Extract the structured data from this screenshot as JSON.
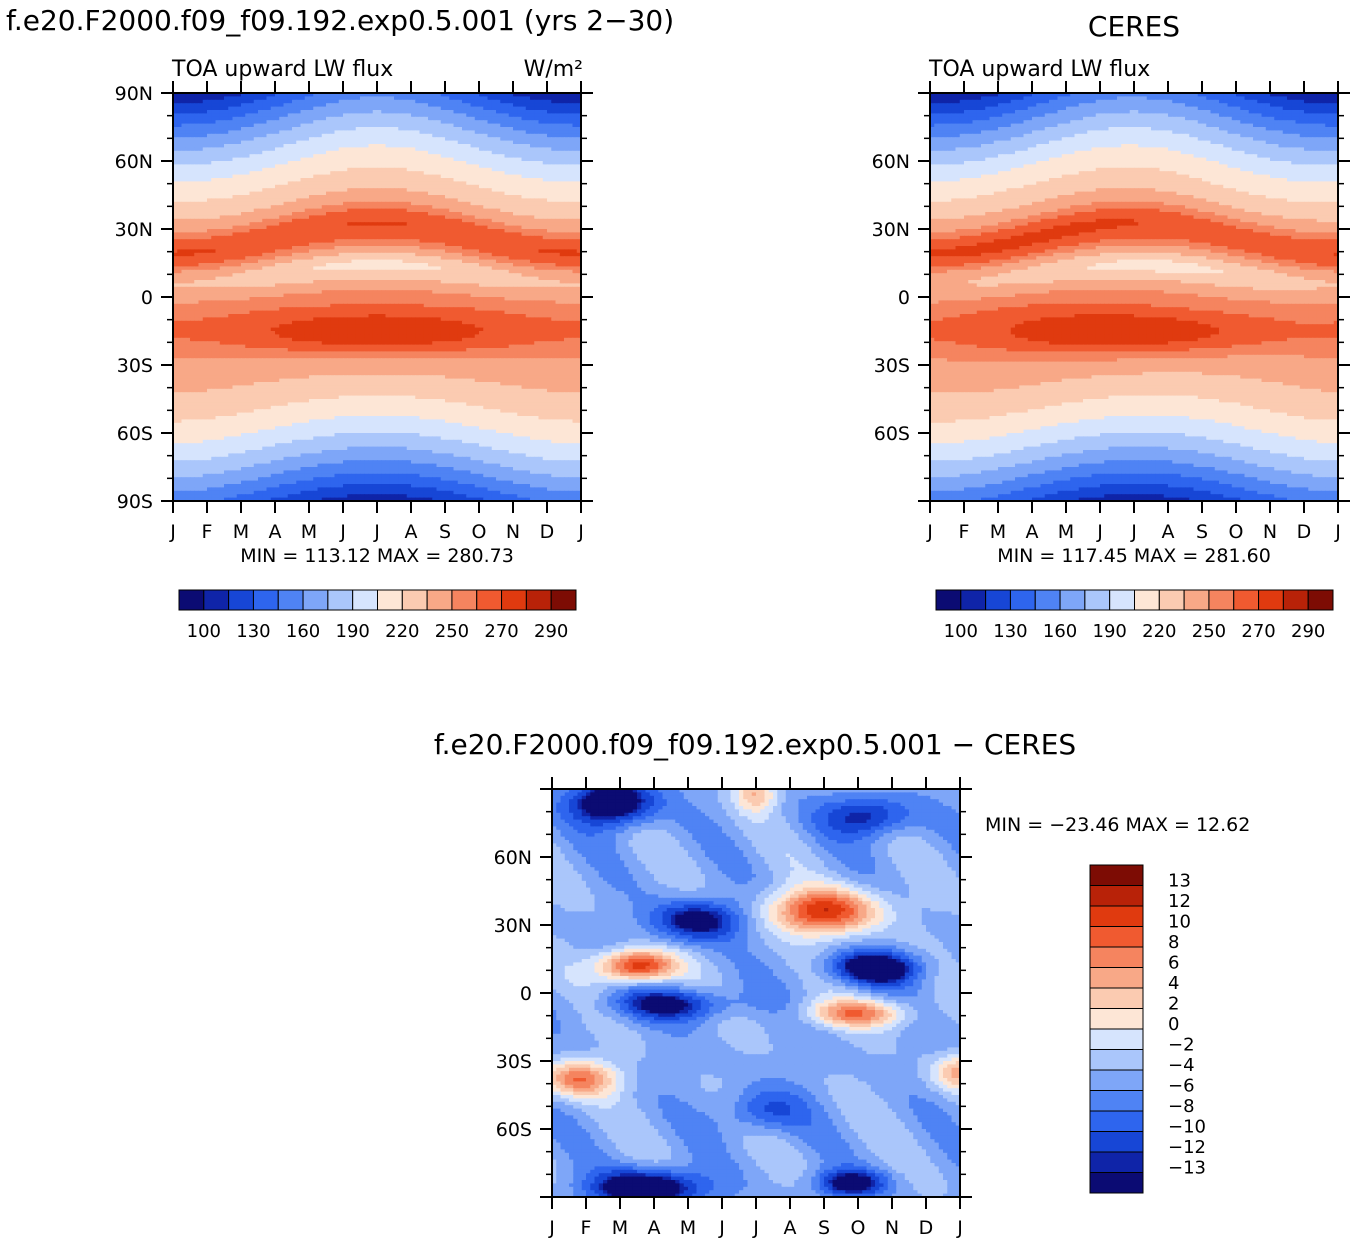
{
  "titles": {
    "left": "f.e20.F2000.f09_f09.192.exp0.5.001 (yrs 2−30)",
    "right": "CERES",
    "bottom": "f.e20.F2000.f09_f09.192.exp0.5.001  −  CERES"
  },
  "chart_data": [
    {
      "id": "model",
      "type": "heatmap",
      "variable": "TOA upward LW flux",
      "units": "W/m²",
      "x_ticks": [
        "J",
        "F",
        "M",
        "A",
        "M",
        "J",
        "J",
        "A",
        "S",
        "O",
        "N",
        "D",
        "J"
      ],
      "y_ticks": [
        "90N",
        "60N",
        "30N",
        "0",
        "30S",
        "60S",
        "90S"
      ],
      "y_range_deg": [
        -90,
        90
      ],
      "stats": "MIN = 113.12  MAX = 280.73",
      "min": 113.12,
      "max": 280.73,
      "colorbar": {
        "orientation": "horizontal",
        "labels": [
          "100",
          "130",
          "160",
          "190",
          "220",
          "250",
          "270",
          "290"
        ],
        "colors": [
          "#0b0b73",
          "#0f24a8",
          "#1746d6",
          "#2e65ee",
          "#4f83f4",
          "#7ea6f8",
          "#aac6fb",
          "#d6e4fd",
          "#fde6d6",
          "#fbcbb1",
          "#f8a887",
          "#f5845f",
          "#f05a30",
          "#e03a0f",
          "#b82208",
          "#7d0c04"
        ]
      }
    },
    {
      "id": "ceres",
      "type": "heatmap",
      "variable": "TOA upward LW flux",
      "x_ticks": [
        "J",
        "F",
        "M",
        "A",
        "M",
        "J",
        "J",
        "A",
        "S",
        "O",
        "N",
        "D",
        "J"
      ],
      "y_ticks": [
        "60N",
        "30N",
        "0",
        "30S",
        "60S"
      ],
      "y_range_deg": [
        -90,
        90
      ],
      "stats": "MIN = 117.45  MAX = 281.60",
      "min": 117.45,
      "max": 281.6,
      "colorbar": {
        "orientation": "horizontal",
        "labels": [
          "100",
          "130",
          "160",
          "190",
          "220",
          "250",
          "270",
          "290"
        ],
        "colors": [
          "#0b0b73",
          "#0f24a8",
          "#1746d6",
          "#2e65ee",
          "#4f83f4",
          "#7ea6f8",
          "#aac6fb",
          "#d6e4fd",
          "#fde6d6",
          "#fbcbb1",
          "#f8a887",
          "#f5845f",
          "#f05a30",
          "#e03a0f",
          "#b82208",
          "#7d0c04"
        ]
      }
    },
    {
      "id": "difference",
      "type": "heatmap",
      "variable": "model minus CERES",
      "x_ticks": [
        "J",
        "F",
        "M",
        "A",
        "M",
        "J",
        "J",
        "A",
        "S",
        "O",
        "N",
        "D",
        "J"
      ],
      "y_ticks": [
        "60N",
        "30N",
        "0",
        "30S",
        "60S"
      ],
      "y_range_deg": [
        -90,
        90
      ],
      "stats": "MIN = −23.46 MAX =  12.62",
      "min": -23.46,
      "max": 12.62,
      "colorbar": {
        "orientation": "vertical",
        "labels": [
          "13",
          "12",
          "10",
          "8",
          "6",
          "4",
          "2",
          "0",
          "−2",
          "−4",
          "−6",
          "−8",
          "−10",
          "−12",
          "−13"
        ],
        "colors": [
          "#7d0c04",
          "#b82208",
          "#e03a0f",
          "#f05a30",
          "#f5845f",
          "#f8a887",
          "#fbcbb1",
          "#fde6d6",
          "#d6e4fd",
          "#aac6fb",
          "#7ea6f8",
          "#4f83f4",
          "#2e65ee",
          "#1746d6",
          "#0f24a8",
          "#0b0b73"
        ]
      }
    }
  ]
}
